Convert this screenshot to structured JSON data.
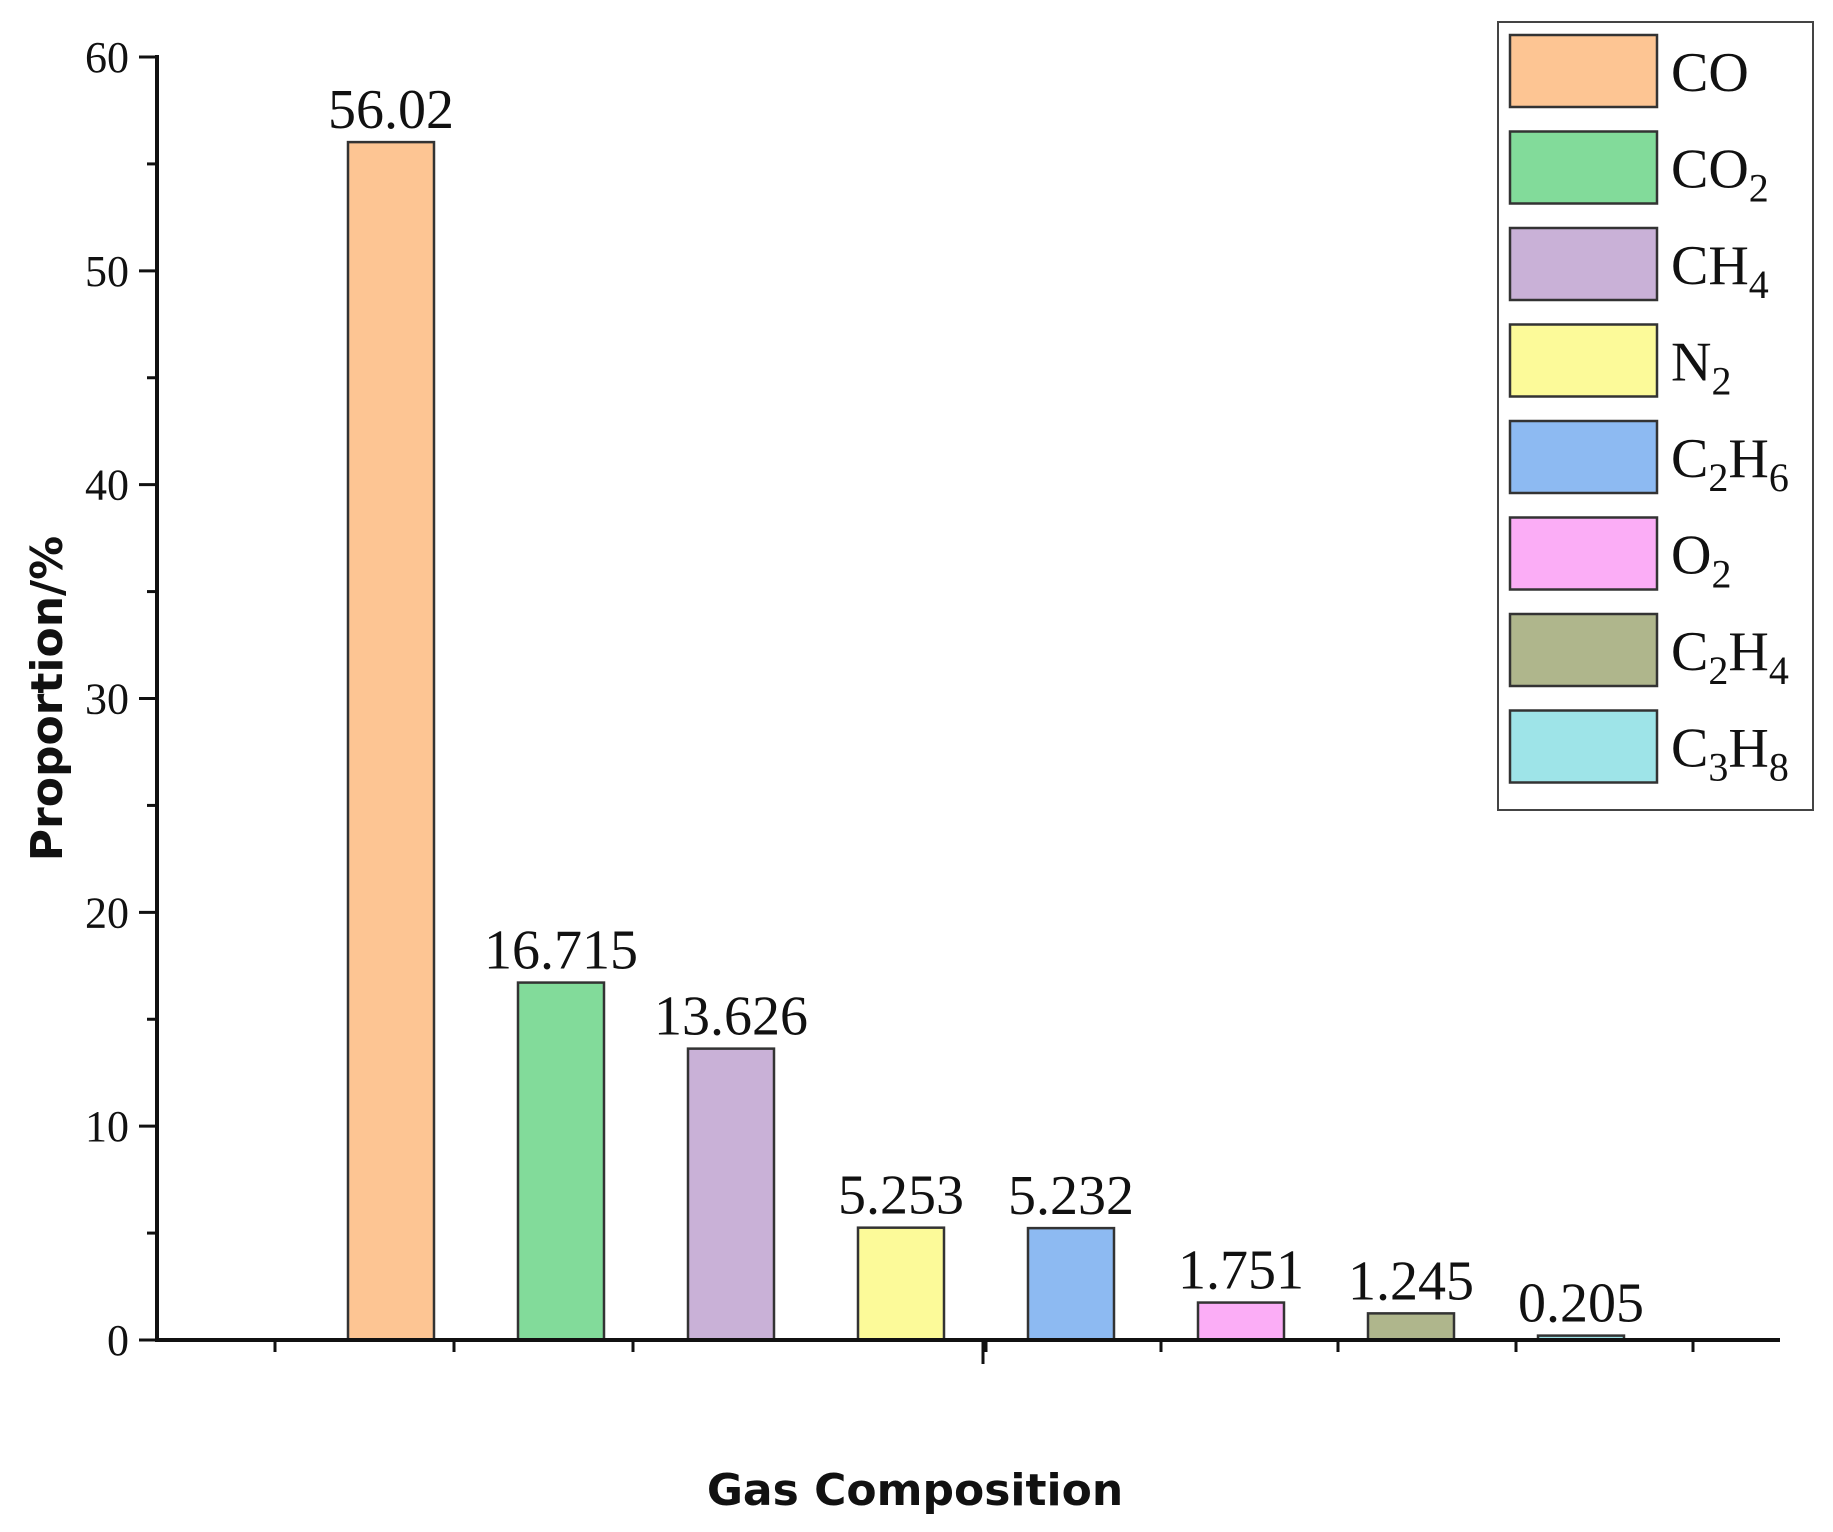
{
  "chart_data": {
    "type": "bar",
    "title": "",
    "xlabel": "Gas Composition",
    "ylabel": "Proportion/%",
    "ylim": [
      0,
      60
    ],
    "yticks": [
      "0",
      "10",
      "20",
      "30",
      "40",
      "50",
      "60"
    ],
    "grid": false,
    "legend_position": "top-right",
    "series": [
      {
        "name": "CO",
        "formula": [
          [
            "C",
            ""
          ],
          [
            "O",
            ""
          ]
        ],
        "value": 56.02,
        "label": "56.02",
        "color": "#FDC593"
      },
      {
        "name": "CO2",
        "formula": [
          [
            "CO",
            ""
          ],
          [
            "",
            "2"
          ]
        ],
        "value": 16.715,
        "label": "16.715",
        "color": "#82DB9A"
      },
      {
        "name": "CH4",
        "formula": [
          [
            "CH",
            ""
          ],
          [
            "",
            "4"
          ]
        ],
        "value": 13.626,
        "label": "13.626",
        "color": "#C9B1D7"
      },
      {
        "name": "N2",
        "formula": [
          [
            "N",
            ""
          ],
          [
            "",
            "2"
          ]
        ],
        "value": 5.253,
        "label": "5.253",
        "color": "#FCFA99"
      },
      {
        "name": "C2H6",
        "formula": [
          [
            "C",
            ""
          ],
          [
            "",
            "2"
          ],
          [
            "H",
            ""
          ],
          [
            "",
            "6"
          ]
        ],
        "value": 5.232,
        "label": "5.232",
        "color": "#8DBAF2"
      },
      {
        "name": "O2",
        "formula": [
          [
            "O",
            ""
          ],
          [
            "",
            "2"
          ]
        ],
        "value": 1.751,
        "label": "1.751",
        "color": "#FBADF6"
      },
      {
        "name": "C2H4",
        "formula": [
          [
            "C",
            ""
          ],
          [
            "",
            "2"
          ],
          [
            "H",
            ""
          ],
          [
            "",
            "4"
          ]
        ],
        "value": 1.245,
        "label": "1.245",
        "color": "#AFB68C"
      },
      {
        "name": "C3H8",
        "formula": [
          [
            "C",
            ""
          ],
          [
            "",
            "3"
          ],
          [
            "H",
            ""
          ],
          [
            "",
            "8"
          ]
        ],
        "value": 0.205,
        "label": "0.205",
        "color": "#9EE4E8"
      }
    ]
  }
}
